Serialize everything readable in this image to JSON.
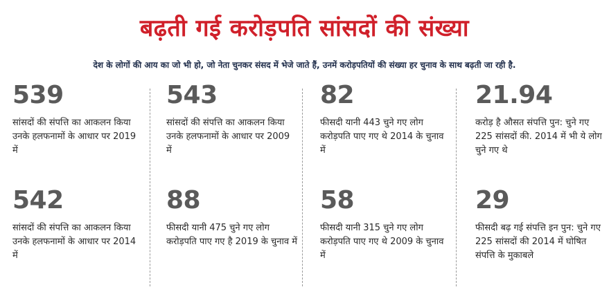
{
  "title": "बढ़ती गई करोड़पति सांसदों की संख्या",
  "subtitle": "देश के लोगों की आय का जो भी हो, जो नेता चुनकर संसद में भेजे जाते हैं, उनमें करोड़पतियों की संख्या हर चुनाव के साथ बढ़ती जा रही है.",
  "stats": [
    {
      "number": "539",
      "text": "सांसदों की संपत्ति का आकलन किया उनके हलफनामों के आधार पर 2019 में"
    },
    {
      "number": "543",
      "text": "सांसदों की संपत्ति का आकलन किया उनके हलफनामों के आधार पर 2009 में"
    },
    {
      "number": "82",
      "text": "फीसदी यानी 443 चुने गए लोग करोड़पति पाए गए थे 2014 के चुनाव में"
    },
    {
      "number": "21.94",
      "text": "करोड़ है औसत संपत्ति पुन: चुने गए 225 सांसदों की. 2014 में भी ये लोग चुने गए थे"
    },
    {
      "number": "542",
      "text": "सांसदों की संपत्ति का आकलन किया उनके हलफनामों के आधार पर 2014 में"
    },
    {
      "number": "88",
      "text": "फीसदी यानी 475 चुने गए लोग करोड़पति पाए गए है 2019 के चुनाव में"
    },
    {
      "number": "58",
      "text": "फीसदी यानी 315 चुने गए लोग करोड़पति पाए गए थे 2009 के चुनाव में"
    },
    {
      "number": "29",
      "text": "फीसदी बढ़ गई संपत्ति इन पुन: चुने गए 225 सांसदों की 2014 में घोषित संपत्ति के मुकाबले"
    }
  ]
}
